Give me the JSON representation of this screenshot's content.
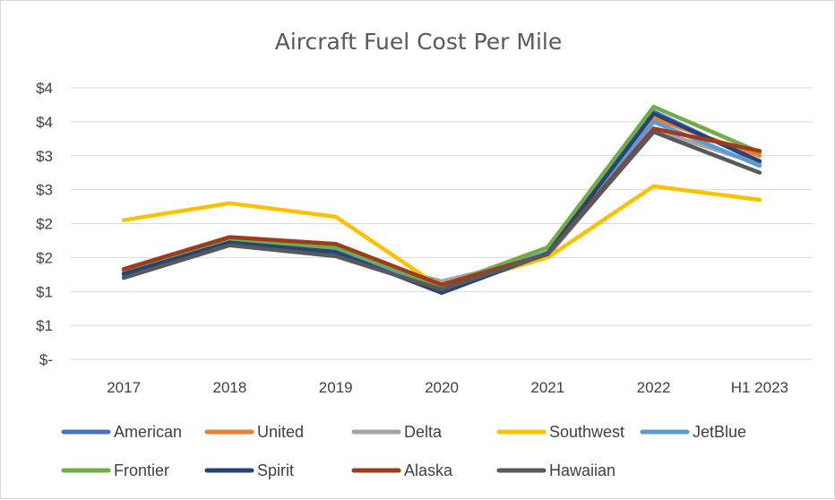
{
  "chart_data": {
    "type": "line",
    "title": "Aircraft Fuel Cost Per Mile",
    "xlabel": "",
    "ylabel": "",
    "categories": [
      "2017",
      "2018",
      "2019",
      "2020",
      "2021",
      "2022",
      "H1 2023"
    ],
    "yticks": [
      "$-",
      "$1",
      "$1",
      "$2",
      "$2",
      "$3",
      "$3",
      "$4",
      "$4"
    ],
    "ylim": [
      0,
      4
    ],
    "grid": true,
    "legend": "bottom",
    "series": [
      {
        "name": "American",
        "color": "#4472C4",
        "values": [
          1.25,
          1.7,
          1.57,
          1.0,
          1.55,
          3.65,
          2.9
        ]
      },
      {
        "name": "United",
        "color": "#ED7D31",
        "values": [
          1.3,
          1.78,
          1.67,
          1.07,
          1.57,
          3.55,
          3.0
        ]
      },
      {
        "name": "Delta",
        "color": "#A5A5A5",
        "values": [
          1.22,
          1.7,
          1.55,
          1.15,
          1.52,
          3.38,
          2.88
        ]
      },
      {
        "name": "Southwest",
        "color": "#FFC000",
        "values": [
          2.05,
          2.3,
          2.1,
          1.05,
          1.5,
          2.55,
          2.35
        ]
      },
      {
        "name": "JetBlue",
        "color": "#5B9BD5",
        "values": [
          1.24,
          1.73,
          1.62,
          1.05,
          1.58,
          3.5,
          2.85
        ]
      },
      {
        "name": "Frontier",
        "color": "#70AD47",
        "values": [
          1.3,
          1.75,
          1.65,
          1.08,
          1.65,
          3.72,
          3.05
        ]
      },
      {
        "name": "Spirit",
        "color": "#264478",
        "values": [
          1.26,
          1.72,
          1.58,
          0.98,
          1.56,
          3.62,
          2.92
        ]
      },
      {
        "name": "Alaska",
        "color": "#9E3B1D",
        "values": [
          1.33,
          1.8,
          1.7,
          1.1,
          1.55,
          3.4,
          3.07
        ]
      },
      {
        "name": "Hawaiian",
        "color": "#595959",
        "values": [
          1.2,
          1.68,
          1.52,
          1.03,
          1.55,
          3.35,
          2.75
        ]
      }
    ]
  }
}
